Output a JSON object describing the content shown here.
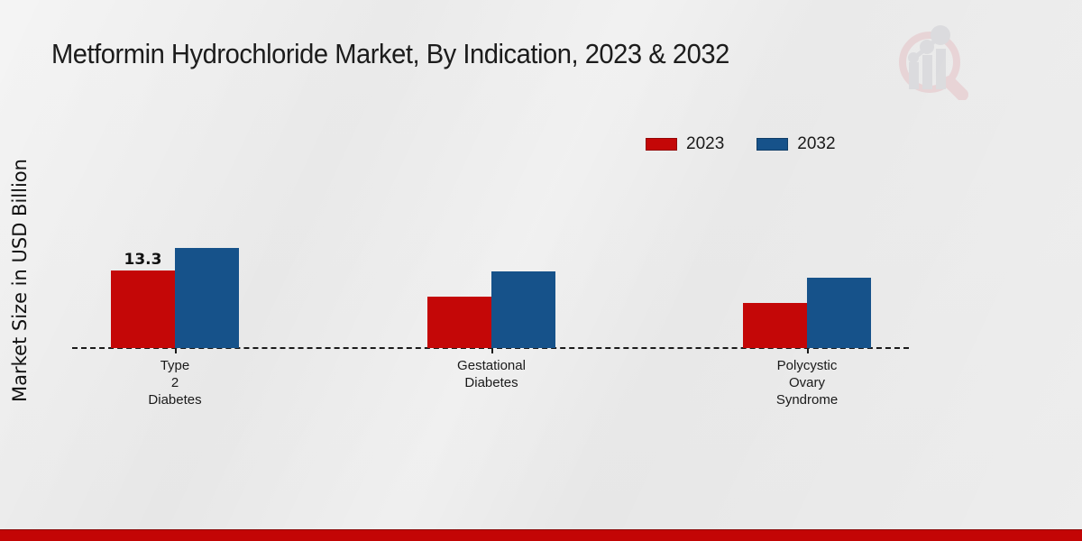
{
  "title": "Metformin Hydrochloride Market, By Indication, 2023 & 2032",
  "y_axis_label": "Market Size in USD Billion",
  "legend": {
    "position": "top-right",
    "items": [
      {
        "label": "2023",
        "color": "#c40707"
      },
      {
        "label": "2032",
        "color": "#16528a"
      }
    ]
  },
  "chart_data": {
    "type": "bar",
    "categories": [
      "Type\n2\nDiabetes",
      "Gestational\nDiabetes",
      "Polycystic\nOvary\nSyndrome"
    ],
    "series": [
      {
        "name": "2023",
        "color": "#c40707",
        "values": [
          13.3,
          8.8,
          7.7
        ],
        "value_labels": [
          "13.3",
          null,
          null
        ]
      },
      {
        "name": "2032",
        "color": "#16528a",
        "values": [
          17.2,
          13.1,
          12.0
        ],
        "value_labels": [
          null,
          null,
          null
        ]
      }
    ],
    "title": "Metformin Hydrochloride Market, By Indication, 2023 & 2032",
    "xlabel": "",
    "ylabel": "Market Size in USD Billion",
    "ylim": [
      0,
      18
    ],
    "grid": false,
    "baseline_style": "dashed",
    "legend_position": "top-right"
  },
  "branding": {
    "logo": "market-research-magnifier-logo",
    "logo_accent_color": "#e5c2c6",
    "logo_bar_color": "#cfcfd4",
    "footer_stripe_color": "#c30505"
  },
  "background_color": "#e8e8e8"
}
